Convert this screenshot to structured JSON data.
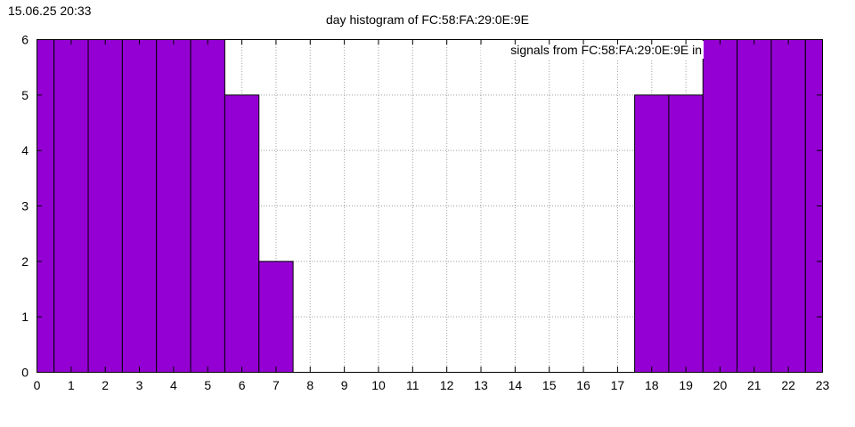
{
  "header": {
    "timestamp": "15.06.25 20:33"
  },
  "chart_data": {
    "type": "bar",
    "title": "day histogram of FC:58:FA:29:0E:9E",
    "legend": {
      "label": "signals from FC:58:FA:29:0E:9E in",
      "placement": "top-right"
    },
    "x": [
      0,
      1,
      2,
      3,
      4,
      5,
      6,
      7,
      8,
      9,
      10,
      11,
      12,
      13,
      14,
      15,
      16,
      17,
      18,
      19,
      20,
      21,
      22,
      23
    ],
    "xlim": [
      0,
      23
    ],
    "ylim": [
      0,
      6
    ],
    "yticks": [
      0,
      1,
      2,
      3,
      4,
      5,
      6
    ],
    "values": [
      6,
      6,
      6,
      6,
      6,
      6,
      5,
      2,
      0,
      0,
      0,
      0,
      0,
      0,
      0,
      0,
      0,
      0,
      5,
      5,
      6,
      6,
      6,
      6
    ],
    "grid": true,
    "bar_color": "#9400d3"
  }
}
